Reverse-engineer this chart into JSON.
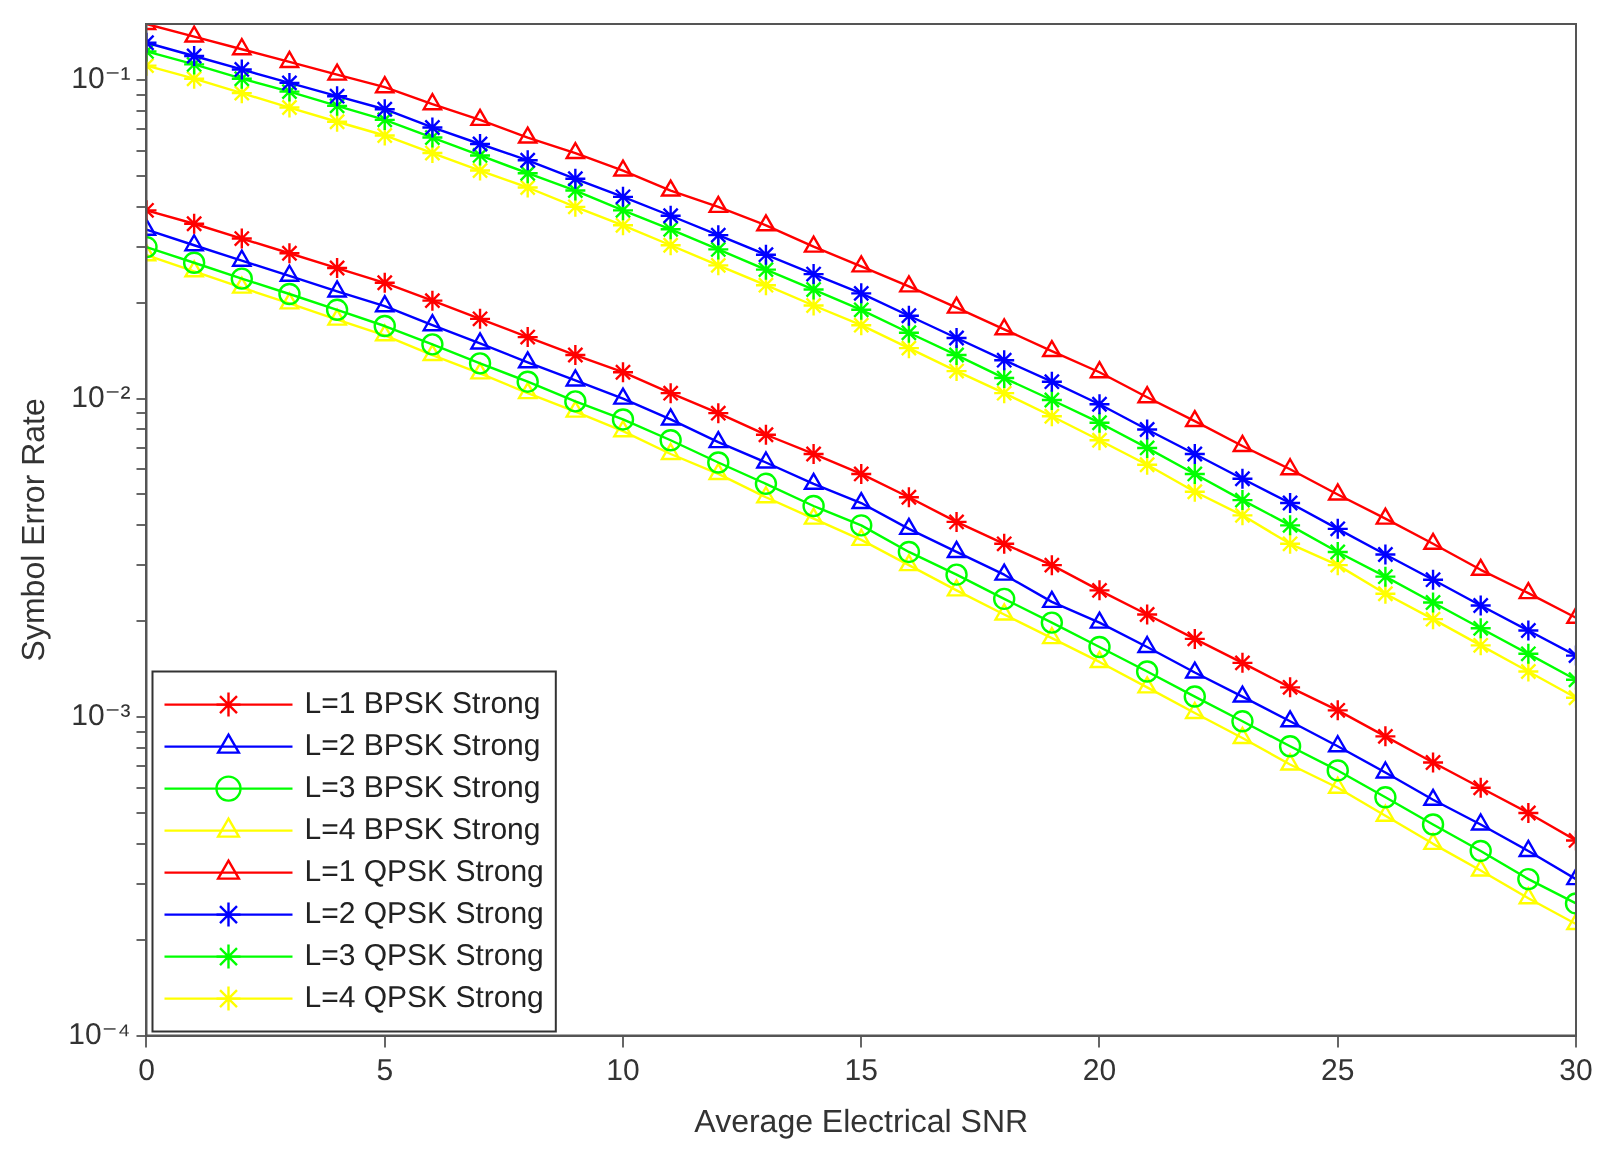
{
  "chart_data": {
    "type": "line",
    "xlabel": "Average Electrical SNR",
    "ylabel": "Symbol Error Rate",
    "log": "y",
    "grid": false,
    "legend": "bottom left",
    "line_style": "solid",
    "x": [
      0,
      1,
      2,
      3,
      4,
      5,
      6,
      7,
      8,
      9,
      10,
      11,
      12,
      13,
      14,
      15,
      16,
      17,
      18,
      19,
      20,
      21,
      22,
      23,
      24,
      25,
      26,
      27,
      28,
      29,
      30
    ],
    "xlim": [
      0,
      30
    ],
    "xticks": [
      0,
      5,
      10,
      15,
      20,
      25,
      30
    ],
    "ylim": [
      0.0001,
      0.15
    ],
    "yticks": [
      {
        "value": 0.0001,
        "label": "10⁻⁴"
      },
      {
        "value": 0.0002,
        "label": null
      },
      {
        "value": 0.0003,
        "label": null
      },
      {
        "value": 0.0004,
        "label": null
      },
      {
        "value": 0.0005,
        "label": null
      },
      {
        "value": 0.0006,
        "label": null
      },
      {
        "value": 0.0007,
        "label": null
      },
      {
        "value": 0.0008,
        "label": null
      },
      {
        "value": 0.0009,
        "label": null
      },
      {
        "value": 0.001,
        "label": "10⁻³"
      },
      {
        "value": 0.002,
        "label": null
      },
      {
        "value": 0.003,
        "label": null
      },
      {
        "value": 0.004,
        "label": null
      },
      {
        "value": 0.005,
        "label": null
      },
      {
        "value": 0.006,
        "label": null
      },
      {
        "value": 0.007,
        "label": null
      },
      {
        "value": 0.008,
        "label": null
      },
      {
        "value": 0.009,
        "label": null
      },
      {
        "value": 0.01,
        "label": "10⁻²"
      },
      {
        "value": 0.02,
        "label": null
      },
      {
        "value": 0.03,
        "label": null
      },
      {
        "value": 0.04,
        "label": null
      },
      {
        "value": 0.05,
        "label": null
      },
      {
        "value": 0.06,
        "label": null
      },
      {
        "value": 0.07,
        "label": null
      },
      {
        "value": 0.08,
        "label": null
      },
      {
        "value": 0.09,
        "label": null
      },
      {
        "value": 0.1,
        "label": "10⁻¹"
      }
    ],
    "series": [
      {
        "name": "L=1 BPSK Strong",
        "color": "#ff0000",
        "marker": "cross",
        "values": [
          0.039,
          0.0354,
          0.0318,
          0.0286,
          0.0257,
          0.0231,
          0.0203,
          0.0178,
          0.0156,
          0.0137,
          0.0121,
          0.0104,
          0.009,
          0.0077,
          0.0067,
          0.0058,
          0.0049,
          0.0041,
          0.0035,
          0.003,
          0.0025,
          0.0021,
          0.00176,
          0.00148,
          0.00124,
          0.00105,
          0.00087,
          0.00072,
          0.0006,
          0.0005,
          0.00041
        ]
      },
      {
        "name": "L=2 BPSK Strong",
        "color": "#0000ff",
        "marker": "triangle",
        "values": [
          0.0339,
          0.0303,
          0.0271,
          0.0243,
          0.0217,
          0.0195,
          0.017,
          0.0149,
          0.013,
          0.0114,
          0.01,
          0.0086,
          0.0073,
          0.0063,
          0.0054,
          0.0047,
          0.0039,
          0.0033,
          0.0028,
          0.0023,
          0.00198,
          0.00166,
          0.00138,
          0.00116,
          0.00097,
          0.00081,
          0.00067,
          0.00055,
          0.00046,
          0.00038,
          0.00031
        ]
      },
      {
        "name": "L=3 BPSK Strong",
        "color": "#00ff00",
        "marker": "circle",
        "values": [
          0.0299,
          0.0267,
          0.0238,
          0.0213,
          0.019,
          0.0169,
          0.0148,
          0.0129,
          0.0113,
          0.0098,
          0.0086,
          0.0074,
          0.0063,
          0.0054,
          0.0046,
          0.004,
          0.0033,
          0.0028,
          0.00235,
          0.00198,
          0.00166,
          0.00139,
          0.00116,
          0.00097,
          0.00081,
          0.00068,
          0.00056,
          0.00046,
          0.00038,
          0.00031,
          0.00026
        ]
      },
      {
        "name": "L=4 BPSK Strong",
        "color": "#ffff00",
        "marker": "triangle",
        "values": [
          0.0282,
          0.0251,
          0.0223,
          0.0199,
          0.0177,
          0.0158,
          0.0137,
          0.012,
          0.0104,
          0.0091,
          0.0079,
          0.0067,
          0.0058,
          0.0049,
          0.0042,
          0.0036,
          0.003,
          0.0025,
          0.0021,
          0.00177,
          0.00149,
          0.00124,
          0.00103,
          0.00086,
          0.00071,
          0.0006,
          0.00049,
          0.0004,
          0.00033,
          0.00027,
          0.000224
        ]
      },
      {
        "name": "L=1 QPSK Strong",
        "color": "#ff0000",
        "marker": "triangle",
        "values": [
          0.15,
          0.137,
          0.125,
          0.114,
          0.104,
          0.095,
          0.084,
          0.075,
          0.066,
          0.059,
          0.052,
          0.045,
          0.04,
          0.035,
          0.03,
          0.026,
          0.0225,
          0.0193,
          0.0165,
          0.0141,
          0.0121,
          0.0101,
          0.0085,
          0.0071,
          0.006,
          0.005,
          0.0042,
          0.0035,
          0.0029,
          0.00245,
          0.00205
        ]
      },
      {
        "name": "L=2 QPSK Strong",
        "color": "#0000ff",
        "marker": "cross",
        "values": [
          0.131,
          0.119,
          0.108,
          0.098,
          0.089,
          0.081,
          0.071,
          0.063,
          0.056,
          0.049,
          0.043,
          0.0375,
          0.0326,
          0.0283,
          0.0246,
          0.0214,
          0.0182,
          0.0155,
          0.0132,
          0.0113,
          0.0096,
          0.008,
          0.0067,
          0.0056,
          0.0047,
          0.0039,
          0.00324,
          0.0027,
          0.00224,
          0.00187,
          0.00156
        ]
      },
      {
        "name": "L=3 QPSK Strong",
        "color": "#00ff00",
        "marker": "cross",
        "values": [
          0.123,
          0.112,
          0.101,
          0.092,
          0.083,
          0.075,
          0.066,
          0.058,
          0.051,
          0.045,
          0.039,
          0.034,
          0.0294,
          0.0254,
          0.022,
          0.019,
          0.0161,
          0.0137,
          0.0116,
          0.0099,
          0.0084,
          0.007,
          0.0058,
          0.0048,
          0.004,
          0.0033,
          0.00276,
          0.00229,
          0.0019,
          0.00158,
          0.00131
        ]
      },
      {
        "name": "L=4 QPSK Strong",
        "color": "#ffff00",
        "marker": "cross",
        "values": [
          0.111,
          0.101,
          0.091,
          0.082,
          0.074,
          0.067,
          0.059,
          0.052,
          0.046,
          0.04,
          0.035,
          0.0303,
          0.0262,
          0.0227,
          0.0196,
          0.017,
          0.0144,
          0.0122,
          0.0104,
          0.0088,
          0.0074,
          0.0062,
          0.0051,
          0.0043,
          0.0035,
          0.003,
          0.00244,
          0.00203,
          0.00168,
          0.00139,
          0.00115
        ]
      }
    ]
  }
}
